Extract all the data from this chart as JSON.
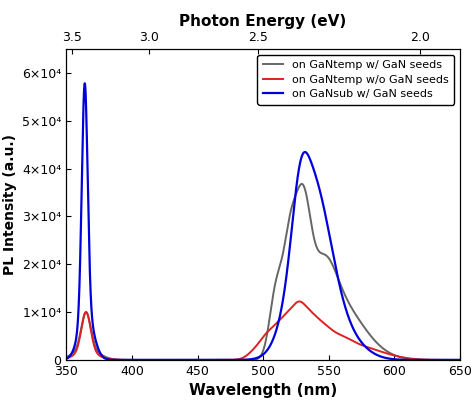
{
  "title_top": "Photon Energy (eV)",
  "xlabel": "Wavelength (nm)",
  "ylabel": "PL Intensity (a.u.)",
  "xlim": [
    350,
    650
  ],
  "ylim": [
    0,
    65000
  ],
  "photon_energy_ticks": [
    3.5,
    3.0,
    2.5,
    2.0
  ],
  "wavelength_ticks": [
    350,
    400,
    450,
    500,
    550,
    600,
    650
  ],
  "yticks": [
    0,
    10000,
    20000,
    30000,
    40000,
    50000,
    60000
  ],
  "ytick_labels": [
    "0",
    "1×10⁴",
    "2×10⁴",
    "3×10⁴",
    "4×10⁴",
    "5×10⁴",
    "6×10⁴"
  ],
  "legend": [
    {
      "label": "on GaNtemp w/ GaN seeds",
      "color": "#666666"
    },
    {
      "label": "on GaNtemp w/o GaN seeds",
      "color": "#dd2222"
    },
    {
      "label": "on GaNsub w/ GaN seeds",
      "color": "#0000dd"
    }
  ],
  "background_color": "#ffffff",
  "figsize": [
    4.74,
    4.09
  ],
  "dpi": 100
}
